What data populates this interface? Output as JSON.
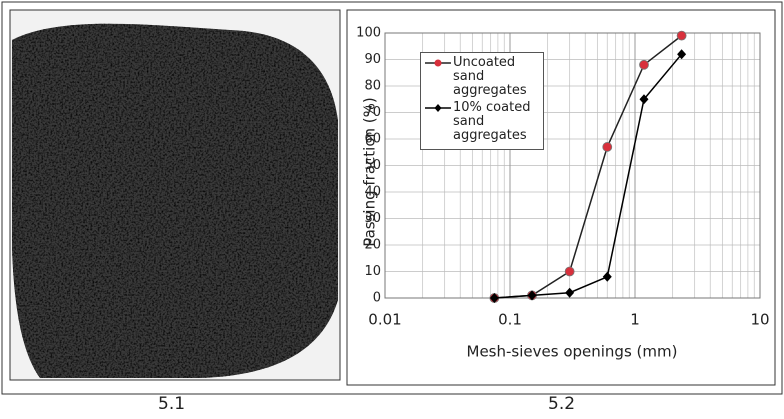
{
  "captions": {
    "left": "5.1",
    "right": "5.2"
  },
  "chart_data": {
    "type": "line",
    "xlabel": "Mesh-sieves openings (mm)",
    "ylabel": "Passing fraction (%)",
    "x": [
      0.075,
      0.15,
      0.3,
      0.6,
      1.18,
      2.36
    ],
    "series": [
      {
        "name": "Uncoated sand aggregates",
        "color": "#222222",
        "marker_color": "#d8303c",
        "marker": "circle",
        "values": [
          0,
          1,
          10,
          57,
          88,
          99
        ]
      },
      {
        "name": "10% coated sand aggregates",
        "color": "#000000",
        "marker_color": "#000000",
        "marker": "diamond",
        "values": [
          0,
          1,
          2,
          8,
          75,
          92
        ]
      }
    ],
    "xscale": "log",
    "xlim": [
      0.01,
      10
    ],
    "xticks": [
      0.01,
      0.1,
      1,
      10
    ],
    "ylim": [
      0,
      100
    ],
    "yticks": [
      0,
      10,
      20,
      30,
      40,
      50,
      60,
      70,
      80,
      90,
      100
    ],
    "grid": true,
    "legend": "upper left"
  }
}
